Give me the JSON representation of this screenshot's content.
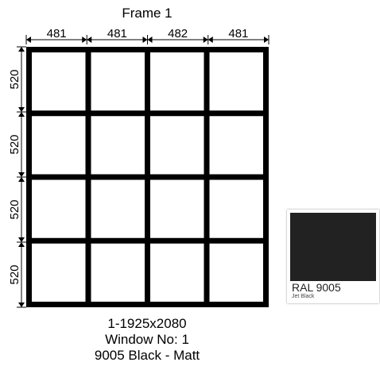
{
  "frame_title": "Frame 1",
  "widths": [
    "481",
    "481",
    "482",
    "481"
  ],
  "heights": [
    "520",
    "520",
    "520",
    "520"
  ],
  "grid": {
    "columns": 4,
    "rows": 4
  },
  "caption": {
    "line1": "1-1925x2080",
    "line2": "Window No: 1",
    "line3": "9005 Black - Matt"
  },
  "swatch": {
    "code": "RAL 9005",
    "name": "Jet Black",
    "color": "#222222"
  },
  "colors": {
    "frame": "#000000",
    "pane": "#ffffff"
  }
}
